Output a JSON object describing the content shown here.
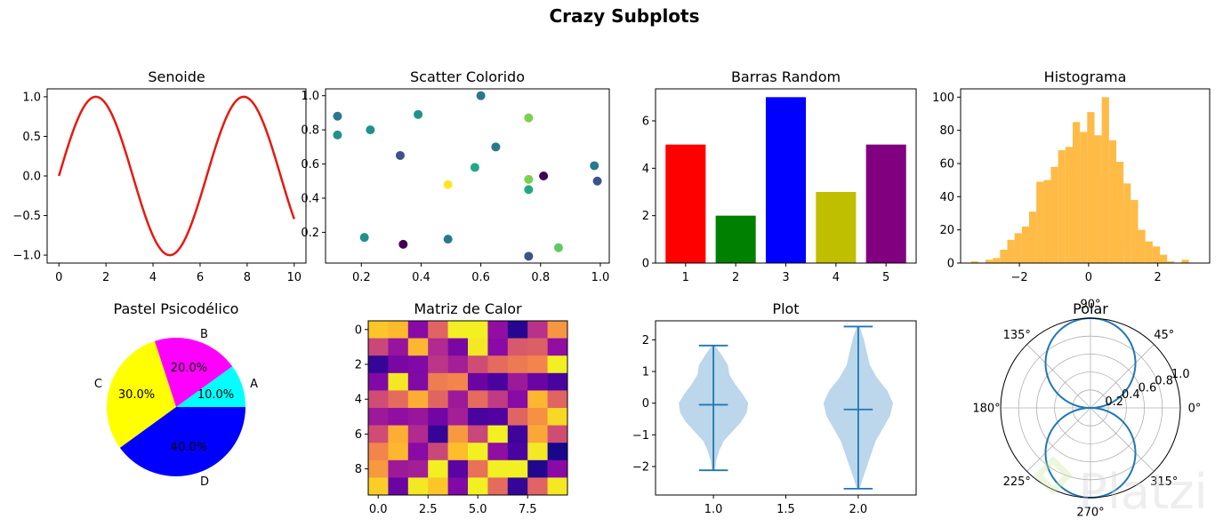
{
  "figure": {
    "suptitle": "Crazy Subplots",
    "watermark": "Platzi"
  },
  "chart_data": [
    {
      "type": "line",
      "title": "Senoide",
      "function": "sin(x)",
      "xlim": [
        -0.5,
        10.5
      ],
      "ylim": [
        -1.1,
        1.1
      ],
      "xticks": [
        0,
        2,
        4,
        6,
        8,
        10
      ],
      "yticks": [
        -1.0,
        -0.5,
        0.0,
        0.5,
        1.0
      ],
      "xtick_labels": [
        "0",
        "2",
        "4",
        "6",
        "8",
        "10"
      ],
      "ytick_labels": [
        "−1.0",
        "−0.5",
        "0.0",
        "0.5",
        "1.0"
      ],
      "color": "#e8190f"
    },
    {
      "type": "scatter",
      "title": "Scatter Colorido",
      "colormap": "viridis",
      "xlim": [
        0.08,
        1.03
      ],
      "ylim": [
        0.02,
        1.04
      ],
      "xticks": [
        0.2,
        0.4,
        0.6,
        0.8,
        1.0
      ],
      "yticks": [
        0.2,
        0.4,
        0.6,
        0.8,
        1.0
      ],
      "xtick_labels": [
        "0.2",
        "0.4",
        "0.6",
        "0.8",
        "1.0"
      ],
      "ytick_labels": [
        "0.2",
        "0.4",
        "0.6",
        "0.8",
        "1.0"
      ],
      "points": [
        {
          "x": 0.12,
          "y": 0.88,
          "c": "#2a788e"
        },
        {
          "x": 0.12,
          "y": 0.77,
          "c": "#21918c"
        },
        {
          "x": 0.21,
          "y": 0.17,
          "c": "#21918c"
        },
        {
          "x": 0.23,
          "y": 0.8,
          "c": "#21918c"
        },
        {
          "x": 0.33,
          "y": 0.65,
          "c": "#3b528b"
        },
        {
          "x": 0.34,
          "y": 0.13,
          "c": "#440154"
        },
        {
          "x": 0.39,
          "y": 0.89,
          "c": "#21918c"
        },
        {
          "x": 0.49,
          "y": 0.16,
          "c": "#2a788e"
        },
        {
          "x": 0.49,
          "y": 0.48,
          "c": "#fde725"
        },
        {
          "x": 0.58,
          "y": 0.58,
          "c": "#22a884"
        },
        {
          "x": 0.6,
          "y": 1.0,
          "c": "#2a788e"
        },
        {
          "x": 0.65,
          "y": 0.7,
          "c": "#2a788e"
        },
        {
          "x": 0.76,
          "y": 0.87,
          "c": "#7ad151"
        },
        {
          "x": 0.76,
          "y": 0.51,
          "c": "#7ad151"
        },
        {
          "x": 0.76,
          "y": 0.45,
          "c": "#22a884"
        },
        {
          "x": 0.76,
          "y": 0.06,
          "c": "#3b528b"
        },
        {
          "x": 0.81,
          "y": 0.53,
          "c": "#440154"
        },
        {
          "x": 0.86,
          "y": 0.11,
          "c": "#5ec962"
        },
        {
          "x": 0.98,
          "y": 0.59,
          "c": "#2a788e"
        },
        {
          "x": 0.99,
          "y": 0.5,
          "c": "#3b528b"
        }
      ]
    },
    {
      "type": "bar",
      "title": "Barras Random",
      "categories": [
        "1",
        "2",
        "3",
        "4",
        "5"
      ],
      "values": [
        5,
        2,
        7,
        3,
        5
      ],
      "colors": [
        "#ff0000",
        "#008000",
        "#0000ff",
        "#bfbf00",
        "#800080"
      ],
      "ylim": [
        0,
        7.35
      ],
      "yticks": [
        0,
        2,
        4,
        6
      ],
      "ytick_labels": [
        "0",
        "2",
        "4",
        "6"
      ]
    },
    {
      "type": "bar",
      "subtype": "histogram",
      "title": "Histograma",
      "color": "#ffb432",
      "bin_start": -3.4,
      "bin_width": 0.21,
      "counts": [
        1,
        0,
        2,
        3,
        8,
        14,
        18,
        22,
        31,
        49,
        50,
        58,
        68,
        70,
        85,
        79,
        91,
        77,
        100,
        74,
        61,
        48,
        38,
        20,
        13,
        10,
        5,
        1,
        0,
        2
      ],
      "xlim": [
        -3.7,
        3.5
      ],
      "ylim": [
        0,
        105
      ],
      "xticks": [
        -2,
        0,
        2
      ],
      "xtick_labels": [
        "−2",
        "0",
        "2"
      ],
      "yticks": [
        0,
        20,
        40,
        60,
        80,
        100
      ],
      "ytick_labels": [
        "0",
        "20",
        "40",
        "60",
        "80",
        "100"
      ]
    },
    {
      "type": "pie",
      "title": "Pastel Psicodélico",
      "labels": [
        "A",
        "B",
        "C",
        "D"
      ],
      "values": [
        10,
        20,
        30,
        40
      ],
      "pct_labels": [
        "10.0%",
        "20.0%",
        "30.0%",
        "40.0%"
      ],
      "colors": [
        "#00ffff",
        "#ff00ff",
        "#ffff00",
        "#0000ff"
      ]
    },
    {
      "type": "heatmap",
      "title": "Matriz de Calor",
      "colormap": "plasma",
      "xticks": [
        0,
        2.5,
        5,
        7.5
      ],
      "xtick_labels": [
        "0.0",
        "2.5",
        "5.0",
        "7.5"
      ],
      "yticks": [
        0,
        2,
        4,
        6,
        8
      ],
      "ytick_labels": [
        "0",
        "2",
        "4",
        "6",
        "8"
      ],
      "rows": [
        [
          0.88,
          0.85,
          0.28,
          0.6,
          0.98,
          0.98,
          0.3,
          0.05,
          0.43,
          0.75
        ],
        [
          0.5,
          0.32,
          0.84,
          0.4,
          0.24,
          0.96,
          0.28,
          0.56,
          0.58,
          0.3
        ],
        [
          0.08,
          0.24,
          0.26,
          0.44,
          0.36,
          0.52,
          0.62,
          0.67,
          0.7,
          0.98
        ],
        [
          0.26,
          0.96,
          0.26,
          0.68,
          0.7,
          0.2,
          0.12,
          0.34,
          0.2,
          0.12
        ],
        [
          0.52,
          0.62,
          0.82,
          0.6,
          0.34,
          0.62,
          0.46,
          0.28,
          0.84,
          0.6
        ],
        [
          0.34,
          0.3,
          0.33,
          0.22,
          0.36,
          0.12,
          0.14,
          0.6,
          0.74,
          0.92
        ],
        [
          0.52,
          0.82,
          0.4,
          0.08,
          0.76,
          0.5,
          0.98,
          0.1,
          0.8,
          0.52
        ],
        [
          0.7,
          0.84,
          0.28,
          0.5,
          0.86,
          0.98,
          0.3,
          0.12,
          0.96,
          0.02
        ],
        [
          0.76,
          0.34,
          0.36,
          0.98,
          0.16,
          0.64,
          0.98,
          0.98,
          0.04,
          0.28
        ],
        [
          0.9,
          0.2,
          0.96,
          0.88,
          0.26,
          0.98,
          0.62,
          0.08,
          0.6,
          0.96
        ]
      ]
    },
    {
      "type": "violin",
      "title": "Plot",
      "color": "#1f77b4",
      "fill": "#b8d4ea",
      "xlim": [
        0.6,
        2.4
      ],
      "ylim": [
        -2.9,
        2.6
      ],
      "xticks": [
        1.0,
        1.5,
        2.0
      ],
      "xtick_labels": [
        "1.0",
        "1.5",
        "2.0"
      ],
      "yticks": [
        -2,
        -1,
        0,
        1,
        2
      ],
      "ytick_labels": [
        "−2",
        "−1",
        "0",
        "1",
        "2"
      ],
      "violins": [
        {
          "pos": 1,
          "min": -2.12,
          "max": 1.82,
          "mean": -0.05,
          "profile": [
            [
              -2.12,
              0.01
            ],
            [
              -1.8,
              0.02
            ],
            [
              -1.5,
              0.04
            ],
            [
              -1.2,
              0.07
            ],
            [
              -0.9,
              0.13
            ],
            [
              -0.6,
              0.19
            ],
            [
              -0.3,
              0.23
            ],
            [
              0.0,
              0.24
            ],
            [
              0.3,
              0.2
            ],
            [
              0.6,
              0.15
            ],
            [
              0.9,
              0.11
            ],
            [
              1.2,
              0.1
            ],
            [
              1.5,
              0.06
            ],
            [
              1.82,
              0.01
            ]
          ]
        },
        {
          "pos": 2,
          "min": -2.7,
          "max": 2.42,
          "mean": -0.2,
          "profile": [
            [
              -2.7,
              0.01
            ],
            [
              -2.4,
              0.03
            ],
            [
              -2.0,
              0.06
            ],
            [
              -1.6,
              0.09
            ],
            [
              -1.2,
              0.12
            ],
            [
              -0.8,
              0.17
            ],
            [
              -0.4,
              0.22
            ],
            [
              0.0,
              0.24
            ],
            [
              0.4,
              0.2
            ],
            [
              0.8,
              0.13
            ],
            [
              1.2,
              0.08
            ],
            [
              1.6,
              0.06
            ],
            [
              2.0,
              0.04
            ],
            [
              2.42,
              0.01
            ]
          ]
        }
      ]
    },
    {
      "type": "line",
      "subtype": "polar",
      "title": "Polar",
      "function": "r = |sin(theta)|",
      "color": "#1f77b4",
      "rticks": [
        0.2,
        0.4,
        0.6,
        0.8,
        1.0
      ],
      "rtick_labels": [
        "0.2",
        "0.4",
        "0.6",
        "0.8",
        "1.0"
      ],
      "theta_labels": [
        "0°",
        "45°",
        "90°",
        "135°",
        "180°",
        "225°",
        "270°",
        "315°"
      ]
    }
  ]
}
